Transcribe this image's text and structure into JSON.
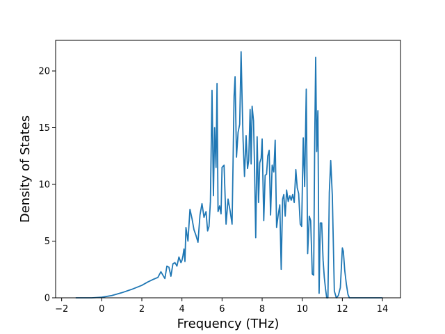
{
  "chart_data": {
    "type": "line",
    "xlabel": "Frequency (THz)",
    "ylabel": "Density of States",
    "xlim": [
      -2.3,
      14.9
    ],
    "ylim": [
      0,
      22.7
    ],
    "x_ticks": [
      "−2",
      "0",
      "2",
      "4",
      "6",
      "8",
      "10",
      "12",
      "14"
    ],
    "x_tick_values": [
      -2,
      0,
      2,
      4,
      6,
      8,
      10,
      12,
      14
    ],
    "y_ticks": [
      "0",
      "5",
      "10",
      "15",
      "20"
    ],
    "y_tick_values": [
      0,
      5,
      10,
      15,
      20
    ],
    "grid": false,
    "line_color": "#1f77b4",
    "series": [
      {
        "x": [
          -1.3,
          -0.5,
          0.0,
          0.5,
          1.0,
          1.5,
          2.0,
          2.3,
          2.6,
          2.8,
          2.95,
          3.05,
          3.15,
          3.25,
          3.35,
          3.45,
          3.55,
          3.65,
          3.75,
          3.85,
          3.95,
          4.0,
          4.05,
          4.1,
          4.15,
          4.2,
          4.3,
          4.4,
          4.5,
          4.6,
          4.7,
          4.8,
          4.9,
          5.0,
          5.1,
          5.2,
          5.28,
          5.35,
          5.42,
          5.5,
          5.57,
          5.63,
          5.7,
          5.75,
          5.8,
          5.88,
          5.95,
          6.0,
          6.1,
          6.2,
          6.3,
          6.4,
          6.5,
          6.55,
          6.6,
          6.65,
          6.72,
          6.8,
          6.88,
          6.95,
          7.0,
          7.05,
          7.12,
          7.2,
          7.27,
          7.33,
          7.4,
          7.45,
          7.5,
          7.57,
          7.62,
          7.68,
          7.75,
          7.82,
          7.88,
          7.95,
          8.0,
          8.08,
          8.15,
          8.22,
          8.28,
          8.35,
          8.42,
          8.5,
          8.58,
          8.65,
          8.72,
          8.8,
          8.88,
          8.95,
          9.02,
          9.08,
          9.15,
          9.22,
          9.3,
          9.38,
          9.45,
          9.52,
          9.6,
          9.68,
          9.75,
          9.82,
          9.9,
          9.97,
          10.05,
          10.12,
          10.2,
          10.27,
          10.35,
          10.42,
          10.5,
          10.57,
          10.62,
          10.67,
          10.72,
          10.78,
          10.84,
          10.9,
          10.97,
          11.04,
          11.1,
          11.16,
          11.22,
          11.28,
          11.35,
          11.42,
          11.5,
          11.6,
          11.7,
          11.8,
          11.9,
          12.0,
          12.05,
          12.12,
          12.2,
          12.28,
          12.35,
          12.42,
          12.5,
          12.55,
          12.6,
          12.68,
          12.75,
          12.82,
          12.9,
          13.0,
          13.5,
          14.0
        ],
        "y": [
          0.0,
          0.0,
          0.05,
          0.2,
          0.45,
          0.75,
          1.1,
          1.4,
          1.65,
          1.8,
          2.3,
          2.0,
          1.7,
          2.8,
          2.7,
          1.9,
          3.0,
          3.1,
          2.8,
          3.6,
          3.1,
          3.3,
          3.7,
          4.3,
          3.2,
          6.2,
          5.0,
          7.8,
          7.0,
          6.0,
          5.5,
          4.9,
          7.3,
          8.3,
          7.1,
          7.6,
          5.9,
          6.3,
          8.5,
          18.3,
          9.0,
          15.0,
          11.5,
          18.9,
          7.6,
          8.1,
          7.4,
          11.5,
          11.7,
          6.5,
          8.7,
          7.7,
          6.5,
          12.0,
          17.8,
          19.5,
          12.4,
          14.6,
          15.3,
          21.7,
          17.5,
          13.9,
          10.7,
          14.3,
          11.4,
          12.1,
          16.6,
          11.8,
          16.9,
          15.6,
          11.6,
          5.3,
          14.2,
          8.4,
          11.9,
          12.3,
          14.0,
          6.8,
          10.8,
          10.9,
          12.5,
          13.0,
          7.3,
          11.7,
          11.1,
          13.9,
          6.2,
          7.3,
          8.2,
          2.5,
          8.7,
          9.1,
          7.2,
          9.5,
          8.5,
          9.0,
          8.6,
          9.1,
          8.4,
          11.3,
          9.7,
          9.2,
          6.5,
          6.3,
          14.1,
          9.8,
          18.4,
          3.9,
          7.2,
          6.8,
          2.1,
          2.0,
          13.6,
          21.2,
          12.9,
          16.5,
          0.4,
          6.6,
          6.6,
          3.3,
          1.8,
          0.8,
          0.0,
          0.0,
          9.3,
          12.1,
          9.0,
          0.6,
          0.0,
          0.2,
          0.9,
          4.4,
          4.1,
          2.4,
          1.2,
          0.3,
          0.0,
          0.0,
          0.0,
          0.0,
          0.0,
          0.0,
          0.0,
          0.0,
          0.0,
          0.0,
          0.0,
          0.0
        ]
      }
    ]
  }
}
